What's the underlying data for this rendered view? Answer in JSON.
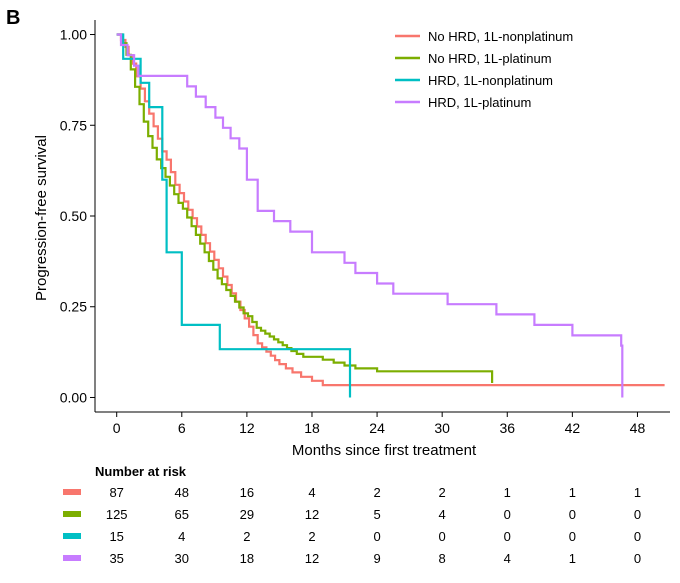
{
  "chart_data": {
    "type": "line",
    "subtype": "kaplan-meier",
    "panel_label": "B",
    "xlabel": "Months since first treatment",
    "ylabel": "Progression-free survival",
    "xlim": [
      -2,
      51
    ],
    "ylim": [
      -0.04,
      1.04
    ],
    "x_ticks": [
      0,
      6,
      12,
      18,
      24,
      30,
      36,
      42,
      48
    ],
    "y_ticks": [
      0,
      0.25,
      0.5,
      0.75,
      1.0
    ],
    "y_tick_labels": [
      "0.00",
      "0.25",
      "0.50",
      "0.75",
      "1.00"
    ],
    "legend_position": "top-right",
    "series": [
      {
        "name": "No HRD, 1L-nonplatinum",
        "color": "#F8766D",
        "x": [
          0,
          0.4,
          0.8,
          1.1,
          1.5,
          1.8,
          2.2,
          2.6,
          3.0,
          3.4,
          3.8,
          4.2,
          4.6,
          5.0,
          5.4,
          5.8,
          6.2,
          6.6,
          7.0,
          7.4,
          7.8,
          8.2,
          8.6,
          9.0,
          9.4,
          9.8,
          10.2,
          10.6,
          11.0,
          11.4,
          11.8,
          12.2,
          12.6,
          13.0,
          13.4,
          13.8,
          14.2,
          14.6,
          15.0,
          15.6,
          16.2,
          17.0,
          18.0,
          19.0,
          20.0,
          24.0,
          30.0,
          36.0,
          42.0,
          48.0,
          50.5
        ],
        "y": [
          1.0,
          0.985,
          0.966,
          0.943,
          0.92,
          0.885,
          0.851,
          0.816,
          0.782,
          0.747,
          0.713,
          0.678,
          0.655,
          0.621,
          0.586,
          0.563,
          0.54,
          0.517,
          0.494,
          0.471,
          0.448,
          0.425,
          0.402,
          0.379,
          0.356,
          0.333,
          0.31,
          0.287,
          0.264,
          0.241,
          0.218,
          0.195,
          0.172,
          0.149,
          0.138,
          0.126,
          0.115,
          0.103,
          0.092,
          0.08,
          0.069,
          0.057,
          0.046,
          0.034,
          0.034,
          0.034,
          0.034,
          0.034,
          0.034,
          0.034,
          0.034
        ]
      },
      {
        "name": "No HRD, 1L-platinum",
        "color": "#7CAE00",
        "x": [
          0,
          0.5,
          0.9,
          1.3,
          1.7,
          2.1,
          2.5,
          2.9,
          3.3,
          3.7,
          4.1,
          4.5,
          4.9,
          5.3,
          5.7,
          6.1,
          6.5,
          6.9,
          7.3,
          7.7,
          8.1,
          8.5,
          8.9,
          9.3,
          9.7,
          10.1,
          10.5,
          10.9,
          11.3,
          11.7,
          12.1,
          12.5,
          12.9,
          13.3,
          13.7,
          14.1,
          14.5,
          14.9,
          15.3,
          15.7,
          16.1,
          16.6,
          17.2,
          18.0,
          19.0,
          20.0,
          21.0,
          22.0,
          24.0,
          30.0,
          34.5,
          34.6
        ],
        "y": [
          1.0,
          0.976,
          0.944,
          0.904,
          0.856,
          0.808,
          0.76,
          0.72,
          0.688,
          0.656,
          0.632,
          0.608,
          0.584,
          0.56,
          0.536,
          0.52,
          0.496,
          0.472,
          0.448,
          0.424,
          0.4,
          0.376,
          0.352,
          0.328,
          0.312,
          0.296,
          0.28,
          0.264,
          0.248,
          0.232,
          0.224,
          0.208,
          0.192,
          0.184,
          0.176,
          0.168,
          0.16,
          0.152,
          0.144,
          0.136,
          0.128,
          0.12,
          0.112,
          0.112,
          0.104,
          0.096,
          0.088,
          0.08,
          0.072,
          0.072,
          0.072,
          0.04
        ]
      },
      {
        "name": "HRD, 1L-nonplatinum",
        "color": "#00BFC4",
        "x": [
          0,
          0.6,
          1.5,
          2.2,
          3.0,
          4.2,
          4.6,
          5.5,
          6.0,
          9.2,
          9.5,
          12.0,
          18.0,
          21.4,
          21.5
        ],
        "y": [
          1.0,
          0.933,
          0.933,
          0.867,
          0.8,
          0.6,
          0.4,
          0.4,
          0.2,
          0.2,
          0.133,
          0.133,
          0.133,
          0.133,
          0.0
        ]
      },
      {
        "name": "HRD, 1L-platinum",
        "color": "#C77CFF",
        "x": [
          0,
          0.4,
          1.0,
          1.6,
          2.0,
          6.0,
          6.5,
          7.3,
          8.2,
          9.1,
          9.8,
          10.5,
          11.3,
          12.0,
          13.0,
          14.5,
          16.0,
          18.0,
          21.0,
          22.0,
          24.0,
          25.5,
          30.5,
          35.0,
          38.5,
          42.0,
          46.5,
          46.6
        ],
        "y": [
          1.0,
          0.971,
          0.943,
          0.914,
          0.886,
          0.886,
          0.857,
          0.829,
          0.8,
          0.771,
          0.743,
          0.714,
          0.686,
          0.6,
          0.514,
          0.486,
          0.457,
          0.4,
          0.371,
          0.343,
          0.314,
          0.286,
          0.257,
          0.229,
          0.2,
          0.171,
          0.143,
          0.0
        ]
      }
    ],
    "risk_table": {
      "title": "Number at risk",
      "times": [
        0,
        6,
        12,
        18,
        24,
        30,
        36,
        42,
        48
      ],
      "rows": [
        {
          "color": "#F8766D",
          "values": [
            "87",
            "48",
            "16",
            "4",
            "2",
            "2",
            "1",
            "1",
            "1"
          ]
        },
        {
          "color": "#7CAE00",
          "values": [
            "125",
            "65",
            "29",
            "12",
            "5",
            "4",
            "0",
            "0",
            "0"
          ]
        },
        {
          "color": "#00BFC4",
          "values": [
            "15",
            "4",
            "2",
            "2",
            "0",
            "0",
            "0",
            "0",
            "0"
          ]
        },
        {
          "color": "#C77CFF",
          "values": [
            "35",
            "30",
            "18",
            "12",
            "9",
            "8",
            "4",
            "1",
            "0"
          ]
        }
      ]
    }
  }
}
